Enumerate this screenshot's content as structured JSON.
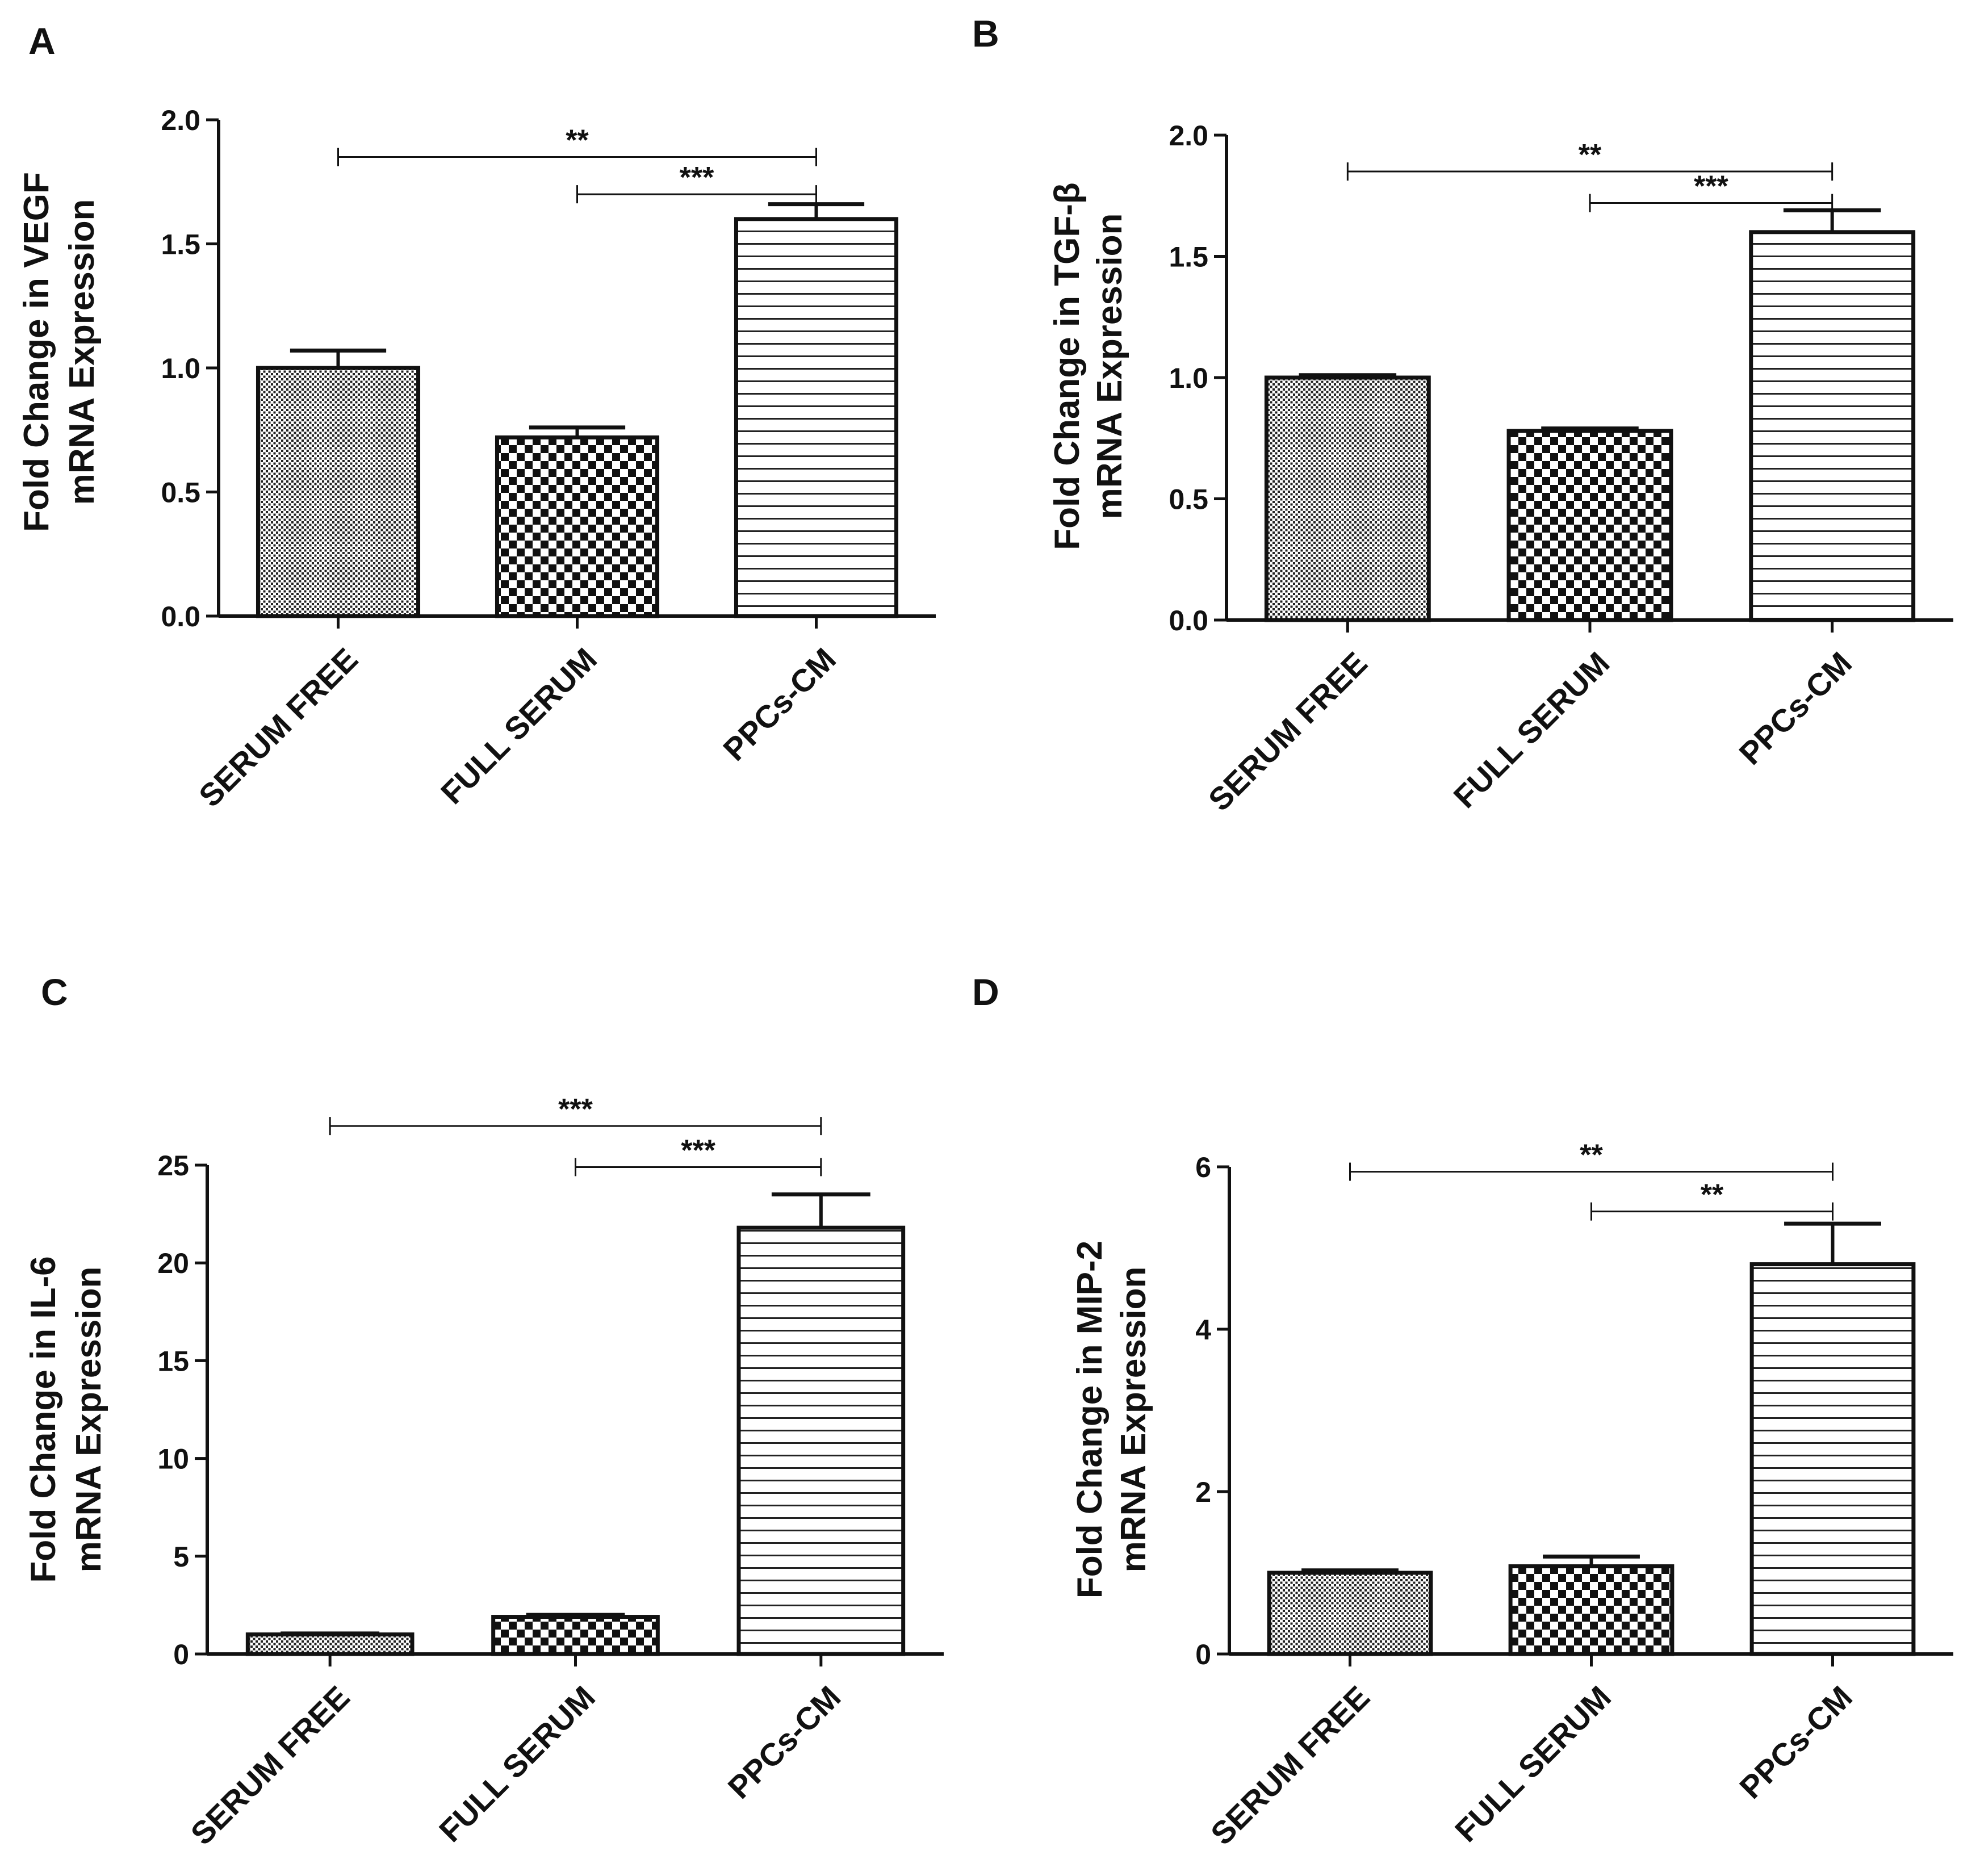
{
  "figure": {
    "colors": {
      "ink": "#111111",
      "background": "#ffffff"
    }
  },
  "chart_data": [
    {
      "panel": "A",
      "type": "bar",
      "title": "",
      "ylabel_lines": [
        "Fold Change in VEGF",
        "mRNA Expression"
      ],
      "xlabel": "",
      "categories": [
        "SERUM FREE",
        "FULL SERUM",
        "PPCs-CM"
      ],
      "patterns": [
        "dots",
        "checker",
        "hlines"
      ],
      "values": [
        1.0,
        0.72,
        1.6
      ],
      "errors": [
        0.07,
        0.04,
        0.06
      ],
      "ylim": [
        0,
        2.0
      ],
      "yticks": [
        "0.0",
        "0.5",
        "1.0",
        "1.5",
        "2.0"
      ],
      "significance": [
        {
          "from": 0,
          "to": 2,
          "label": "**",
          "level": 1.85
        },
        {
          "from": 1,
          "to": 2,
          "label": "***",
          "level": 1.7
        }
      ]
    },
    {
      "panel": "B",
      "type": "bar",
      "title": "",
      "ylabel_lines": [
        "Fold Change in TGF-β",
        "mRNA Expression"
      ],
      "xlabel": "",
      "categories": [
        "SERUM FREE",
        "FULL SERUM",
        "PPCs-CM"
      ],
      "patterns": [
        "dots",
        "checker",
        "hlines"
      ],
      "values": [
        1.0,
        0.78,
        1.6
      ],
      "errors": [
        0.01,
        0.01,
        0.09
      ],
      "ylim": [
        0,
        2.0
      ],
      "yticks": [
        "0.0",
        "0.5",
        "1.0",
        "1.5",
        "2.0"
      ],
      "significance": [
        {
          "from": 0,
          "to": 2,
          "label": "**",
          "level": 1.85
        },
        {
          "from": 1,
          "to": 2,
          "label": "***",
          "level": 1.72
        }
      ]
    },
    {
      "panel": "C",
      "type": "bar",
      "title": "",
      "ylabel_lines": [
        "Fold Change in IL-6",
        "mRNA Expression"
      ],
      "xlabel": "",
      "categories": [
        "SERUM FREE",
        "FULL SERUM",
        "PPCs-CM"
      ],
      "patterns": [
        "dots",
        "checker",
        "hlines"
      ],
      "values": [
        1.0,
        1.9,
        21.8
      ],
      "errors": [
        0.05,
        0.1,
        1.7
      ],
      "ylim": [
        0,
        25
      ],
      "yticks": [
        "0",
        "5",
        "10",
        "15",
        "20",
        "25"
      ],
      "significance": [
        {
          "from": 0,
          "to": 2,
          "label": "***",
          "level": 27.0
        },
        {
          "from": 1,
          "to": 2,
          "label": "***",
          "level": 24.9
        }
      ]
    },
    {
      "panel": "D",
      "type": "bar",
      "title": "",
      "ylabel_lines": [
        "Fold Change in MIP-2",
        "mRNA Expression"
      ],
      "xlabel": "",
      "categories": [
        "SERUM FREE",
        "FULL SERUM",
        "PPCs-CM"
      ],
      "patterns": [
        "dots",
        "checker",
        "hlines"
      ],
      "values": [
        1.0,
        1.08,
        4.8
      ],
      "errors": [
        0.03,
        0.12,
        0.5
      ],
      "ylim": [
        0,
        6
      ],
      "yticks": [
        "0",
        "2",
        "4",
        "6"
      ],
      "significance": [
        {
          "from": 0,
          "to": 2,
          "label": "**",
          "level": 5.94
        },
        {
          "from": 1,
          "to": 2,
          "label": "**",
          "level": 5.45
        }
      ]
    }
  ]
}
